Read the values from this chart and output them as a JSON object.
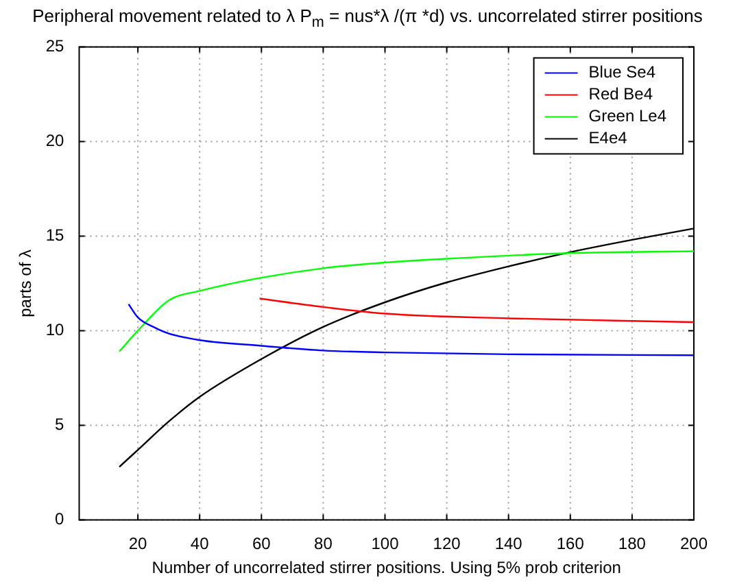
{
  "chart_data": {
    "type": "line",
    "title": "Peripheral movement related to λ  P$_{m}$ = nus*λ /(π *d) vs. uncorrelated stirrer positions",
    "xlabel": "Number of uncorrelated stirrer positions. Using 5% prob criterion",
    "ylabel": "parts of λ",
    "xlim": [
      1,
      200
    ],
    "xticks": [
      20,
      40,
      60,
      80,
      100,
      120,
      140,
      160,
      180,
      200
    ],
    "ylim": [
      0,
      25
    ],
    "yticks": [
      0,
      5,
      10,
      15,
      20,
      25
    ],
    "grid": true,
    "legend": "top right",
    "marker": "none",
    "line_style": "solid",
    "series": [
      {
        "name": "Blue Se4",
        "color": "#0000ff",
        "x": [
          17,
          20,
          25,
          30,
          40,
          60,
          80,
          100,
          140,
          200
        ],
        "values": [
          11.4,
          10.7,
          10.2,
          9.85,
          9.5,
          9.2,
          8.95,
          8.85,
          8.75,
          8.7
        ]
      },
      {
        "name": "Red Be4",
        "color": "#ff0000",
        "x": [
          59.4,
          80,
          100,
          140,
          200
        ],
        "values": [
          11.7,
          11.25,
          10.9,
          10.65,
          10.45
        ]
      },
      {
        "name": "Green Le4",
        "color": "#00ff00",
        "x": [
          14,
          20,
          30,
          40,
          60,
          80,
          100,
          120,
          160,
          200
        ],
        "values": [
          8.9,
          10.0,
          11.6,
          12.1,
          12.8,
          13.3,
          13.6,
          13.8,
          14.1,
          14.2
        ]
      },
      {
        "name": "E4e4",
        "color": "#000000",
        "x": [
          14,
          20,
          30,
          40,
          60,
          80,
          100,
          120,
          140,
          160,
          180,
          200
        ],
        "values": [
          2.8,
          3.7,
          5.2,
          6.5,
          8.5,
          10.2,
          11.5,
          12.55,
          13.4,
          14.15,
          14.8,
          15.4
        ]
      }
    ]
  }
}
